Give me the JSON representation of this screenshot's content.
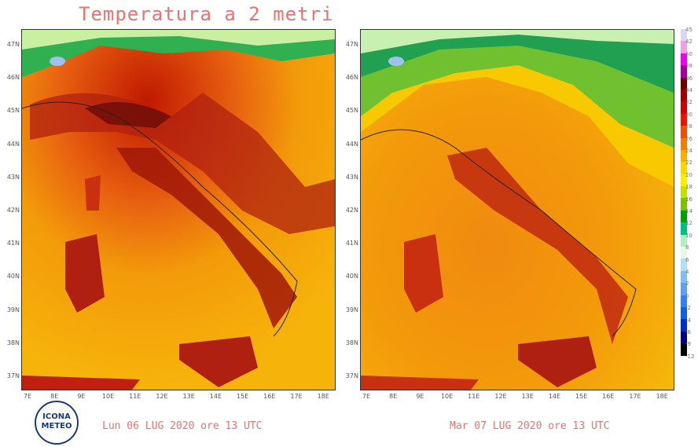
{
  "title": "Temperatura a 2 metri",
  "panels": [
    {
      "date_label": "Lun 06 LUG 2020 ore 13 UTC"
    },
    {
      "date_label": "Mar 07 LUG 2020 ore 13 UTC"
    }
  ],
  "lat_labels": [
    "47N",
    "46N",
    "45N",
    "44N",
    "43N",
    "42N",
    "41N",
    "40N",
    "39N",
    "38N",
    "37N"
  ],
  "lon_labels": [
    "7E",
    "8E",
    "9E",
    "10E",
    "11E",
    "12E",
    "13E",
    "14E",
    "15E",
    "16E",
    "17E",
    "18E"
  ],
  "logo_text": [
    "ICONA",
    "METEO"
  ],
  "colorbar": {
    "labels": [
      "45",
      "42",
      "40",
      "38",
      "36",
      "34",
      "32",
      "30",
      "28",
      "26",
      "24",
      "22",
      "20",
      "18",
      "16",
      "14",
      "12",
      "10",
      "8",
      "6",
      "4",
      "2",
      "0",
      "-2",
      "-4",
      "-6",
      "-9",
      "-12"
    ],
    "colors": [
      "#d8d8f0",
      "#f0a0e8",
      "#f000f0",
      "#a000a0",
      "#700000",
      "#a00000",
      "#d00000",
      "#f01000",
      "#f05000",
      "#f08000",
      "#f8b000",
      "#f8d800",
      "#f8f000",
      "#c8e000",
      "#80c000",
      "#00a000",
      "#00c080",
      "#b0f0c0",
      "#e8f8e8",
      "#b0e0f8",
      "#80c0f0",
      "#60a0f0",
      "#3080f0",
      "#1060e0",
      "#0030c0",
      "#000080",
      "#000000"
    ]
  }
}
